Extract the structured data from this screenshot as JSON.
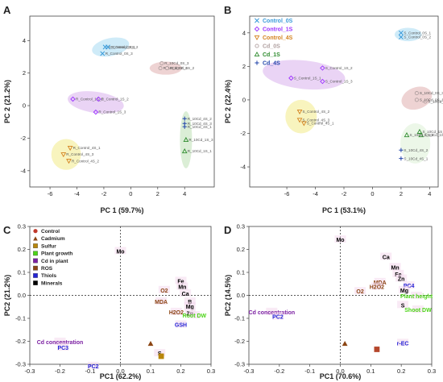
{
  "colors": {
    "control": "#c0392b",
    "cadmium": "#8b4513",
    "sulfur": "#b8860b",
    "plant_growth": "#4cd417",
    "cd_in_plant": "#7b1fa2",
    "ros": "#8b4513",
    "thiols": "#2424d6",
    "minerals": "#000000",
    "control_0s": "#3a9ad9",
    "control_1s": "#9b30ff",
    "control_4s": "#d4821e",
    "cd_0s": "#b0a0a0",
    "cd_1s": "#2e8b2e",
    "cd_4s": "#2244aa"
  },
  "chart_data": [
    {
      "panel": "A",
      "type": "scatter",
      "xlabel": "PC 1 (59.7%)",
      "ylabel": "PC 2 (21.2%)",
      "xlim": [
        -7.5,
        6.2
      ],
      "ylim": [
        -5.0,
        5.5
      ],
      "xticks": [
        "-6",
        "-4",
        "-2",
        "0",
        "2",
        "4"
      ],
      "xtick_values": [
        -6,
        -4,
        -2,
        0,
        2,
        4
      ],
      "yticks": [
        "4",
        "2",
        "0",
        "-2",
        "-4"
      ],
      "ytick_values": [
        4,
        2,
        0,
        -2,
        -4
      ],
      "ellipses": [
        {
          "cx": -1.5,
          "cy": 3.6,
          "rx": 1.4,
          "ry": 0.55,
          "angle": -12,
          "color": "#bfe4f6"
        },
        {
          "cx": -2.6,
          "cy": 0.2,
          "rx": 2.1,
          "ry": 0.65,
          "angle": 8,
          "color": "#e3c6f2"
        },
        {
          "cx": 2.6,
          "cy": 2.3,
          "rx": 1.2,
          "ry": 0.4,
          "angle": 0,
          "color": "#e8c4c4"
        },
        {
          "cx": -4.8,
          "cy": -3.0,
          "rx": 1.1,
          "ry": 0.95,
          "angle": 0,
          "color": "#f6f0a8"
        },
        {
          "cx": 4.1,
          "cy": -2.1,
          "rx": 0.45,
          "ry": 1.75,
          "angle": 0,
          "color": "#cfe8c8"
        }
      ],
      "points": [
        {
          "label": "R_Control_0S_1",
          "x": -1.9,
          "y": 3.6,
          "color": "#3a9ad9",
          "marker": "x"
        },
        {
          "label": "R_Control_0S_2",
          "x": -1.7,
          "y": 3.6,
          "color": "#3a9ad9",
          "marker": "x"
        },
        {
          "label": "R_Control_0S_3",
          "x": -2.1,
          "y": 3.2,
          "color": "#3a9ad9",
          "marker": "x"
        },
        {
          "label": "R_10Cd_0S_3",
          "x": 2.3,
          "y": 2.6,
          "color": "#b0a0a0",
          "marker": "o"
        },
        {
          "label": "R_10Cd_0S_1",
          "x": 2.2,
          "y": 2.3,
          "color": "#b0a0a0",
          "marker": "o"
        },
        {
          "label": "R_10Cd_0S_2",
          "x": 2.7,
          "y": 2.3,
          "color": "#b0a0a0",
          "marker": "o"
        },
        {
          "label": "R_Control_1S_1",
          "x": -4.3,
          "y": 0.4,
          "color": "#9b30ff",
          "marker": "d"
        },
        {
          "label": "R_Control_1S_2",
          "x": -2.4,
          "y": 0.4,
          "color": "#9b30ff",
          "marker": "d"
        },
        {
          "label": "R_Control_1S_3",
          "x": -2.6,
          "y": -0.4,
          "color": "#9b30ff",
          "marker": "d"
        },
        {
          "label": "R_10Cd_4S_2",
          "x": 4.0,
          "y": -0.8,
          "color": "#2244aa",
          "marker": "+"
        },
        {
          "label": "R_10Cd_4S_3",
          "x": 4.0,
          "y": -1.1,
          "color": "#2244aa",
          "marker": "+"
        },
        {
          "label": "R_10Cd_4S_1",
          "x": 4.0,
          "y": -1.3,
          "color": "#2244aa",
          "marker": "+"
        },
        {
          "label": "R_10Cd_1S_3",
          "x": 4.1,
          "y": -2.1,
          "color": "#2e8b2e",
          "marker": "t"
        },
        {
          "label": "R_10Cd_1S_1",
          "x": 4.0,
          "y": -2.8,
          "color": "#2e8b2e",
          "marker": "t"
        },
        {
          "label": "R_Control_4S_1",
          "x": -4.5,
          "y": -2.6,
          "color": "#d4821e",
          "marker": "v"
        },
        {
          "label": "R_Control_4S_3",
          "x": -5.0,
          "y": -3.0,
          "color": "#d4821e",
          "marker": "v"
        },
        {
          "label": "R_Control_4S_2",
          "x": -4.6,
          "y": -3.4,
          "color": "#d4821e",
          "marker": "v"
        }
      ]
    },
    {
      "panel": "B",
      "type": "scatter",
      "xlabel": "PC 1 (53.1%)",
      "ylabel": "PC 2 (22.4%)",
      "xlim": [
        -8.6,
        4.6
      ],
      "ylim": [
        -5.2,
        5.0
      ],
      "xticks": [
        "-6",
        "-4",
        "-2",
        "0",
        "2",
        "4"
      ],
      "xtick_values": [
        -6,
        -4,
        -2,
        0,
        2,
        4
      ],
      "yticks": [
        "4",
        "2",
        "0",
        "-2",
        "-4"
      ],
      "ytick_values": [
        4,
        2,
        0,
        -2,
        -4
      ],
      "legend": [
        "Control_0S",
        "Control_1S",
        "Control_4S",
        "Cd_0S",
        "Cd_1S",
        "Cd_4S"
      ],
      "ellipses": [
        {
          "cx": 2.5,
          "cy": 3.9,
          "rx": 0.95,
          "ry": 0.4,
          "angle": 0,
          "color": "#bfe4f6"
        },
        {
          "cx": -4.8,
          "cy": 1.5,
          "rx": 2.9,
          "ry": 0.85,
          "angle": 6,
          "color": "#e3c6f2"
        },
        {
          "cx": 3.1,
          "cy": 0.1,
          "rx": 1.1,
          "ry": 0.65,
          "angle": -20,
          "color": "#e8c4c4"
        },
        {
          "cx": -5.0,
          "cy": -1.0,
          "rx": 1.1,
          "ry": 1.0,
          "angle": 0,
          "color": "#f6f0a8"
        },
        {
          "cx": 3.0,
          "cy": -2.6,
          "rx": 1.05,
          "ry": 1.2,
          "angle": 0,
          "color": "#e6f4e0"
        }
      ],
      "points": [
        {
          "label": "S_Control_0S_1",
          "x": 2.0,
          "y": 4.0,
          "color": "#3a9ad9",
          "marker": "x"
        },
        {
          "label": "S_Control_0S_2",
          "x": 2.0,
          "y": 3.75,
          "color": "#3a9ad9",
          "marker": "x"
        },
        {
          "label": "S_Control_1S_2",
          "x": -3.5,
          "y": 1.9,
          "color": "#9b30ff",
          "marker": "d"
        },
        {
          "label": "S_Control_1S_1",
          "x": -5.7,
          "y": 1.3,
          "color": "#9b30ff",
          "marker": "d"
        },
        {
          "label": "S_Control_1S_3",
          "x": -3.5,
          "y": 1.1,
          "color": "#9b30ff",
          "marker": "d"
        },
        {
          "label": "S_10Cd_0S_3",
          "x": 3.1,
          "y": 0.4,
          "color": "#b0a0a0",
          "marker": "o"
        },
        {
          "label": "S_10Cd_0S_1",
          "x": 3.1,
          "y": 0.0,
          "color": "#b0a0a0",
          "marker": "o"
        },
        {
          "label": "S_10Cd_0S_2",
          "x": 3.7,
          "y": -0.1,
          "color": "#b0a0a0",
          "marker": "o"
        },
        {
          "label": "S_Control_4S_2",
          "x": -5.1,
          "y": -0.7,
          "color": "#d4821e",
          "marker": "v"
        },
        {
          "label": "S_Control_4S_3",
          "x": -5.1,
          "y": -1.2,
          "color": "#d4821e",
          "marker": "v"
        },
        {
          "label": "S_Control_4S_1",
          "x": -4.8,
          "y": -1.4,
          "color": "#d4821e",
          "marker": "v"
        },
        {
          "label": "S_10Cd_1S_3",
          "x": 3.3,
          "y": -1.9,
          "color": "#2e8b2e",
          "marker": "t"
        },
        {
          "label": "S_10Cd_1S_1",
          "x": 3.4,
          "y": -2.1,
          "color": "#2e8b2e",
          "marker": "t"
        },
        {
          "label": "S_10Cd_1S_2",
          "x": 2.4,
          "y": -2.1,
          "color": "#2e8b2e",
          "marker": "t"
        },
        {
          "label": "S_10Cd_4S_2",
          "x": 2.0,
          "y": -3.0,
          "color": "#2244aa",
          "marker": "+"
        },
        {
          "label": "S_10Cd_4S_1",
          "x": 2.0,
          "y": -3.5,
          "color": "#2244aa",
          "marker": "+"
        }
      ]
    },
    {
      "panel": "C",
      "type": "scatter",
      "xlabel": "PC1 (62.2%)",
      "ylabel": "PC2 (21.2%)",
      "xlim": [
        -0.3,
        0.3
      ],
      "ylim": [
        -0.3,
        0.3
      ],
      "xticks": [
        "-0.3",
        "-0.2",
        "-0.1",
        "0.0",
        "0.1",
        "0.2",
        "0.3"
      ],
      "xtick_values": [
        -0.3,
        -0.2,
        -0.1,
        0.0,
        0.1,
        0.2,
        0.3
      ],
      "yticks": [
        "0.3",
        "0.2",
        "0.1",
        "0.0",
        "-0.1",
        "-0.2",
        "-0.3"
      ],
      "ytick_values": [
        0.3,
        0.2,
        0.1,
        0.0,
        -0.1,
        -0.2,
        -0.3
      ],
      "legend": [
        "Control",
        "Cadmium",
        "Sulfur",
        "Plant growth",
        "Cd in plant",
        "ROS",
        "Thiols",
        "Minerals"
      ],
      "markers": [
        {
          "x": 0.1,
          "y": -0.21,
          "color": "#8b4513",
          "marker": "t"
        },
        {
          "x": 0.135,
          "y": -0.265,
          "color": "#b8860b",
          "marker": "s"
        }
      ],
      "labels": [
        {
          "text": "Mo",
          "x": 0.0,
          "y": 0.19,
          "color": "#000000"
        },
        {
          "text": "Fe",
          "x": 0.2,
          "y": 0.06,
          "color": "#000000"
        },
        {
          "text": "Mn",
          "x": 0.205,
          "y": 0.035,
          "color": "#000000"
        },
        {
          "text": "Ca",
          "x": 0.215,
          "y": 0.005,
          "color": "#000000"
        },
        {
          "text": "O2",
          "x": 0.145,
          "y": 0.02,
          "color": "#8b4513"
        },
        {
          "text": "MDA",
          "x": 0.135,
          "y": -0.03,
          "color": "#8b4513"
        },
        {
          "text": "B",
          "x": 0.23,
          "y": -0.03,
          "color": "#000000"
        },
        {
          "text": "Mg",
          "x": 0.23,
          "y": -0.05,
          "color": "#000000"
        },
        {
          "text": "H2O2",
          "x": 0.185,
          "y": -0.075,
          "color": "#8b4513"
        },
        {
          "text": "Zn",
          "x": 0.23,
          "y": -0.08,
          "color": "#000000"
        },
        {
          "text": "Root DW",
          "x": 0.245,
          "y": -0.09,
          "color": "#4cd417"
        },
        {
          "text": "GSH",
          "x": 0.2,
          "y": -0.13,
          "color": "#2424d6"
        },
        {
          "text": "S",
          "x": 0.13,
          "y": -0.255,
          "color": "#000000"
        },
        {
          "text": "Cd concentration",
          "x": -0.2,
          "y": -0.205,
          "color": "#7b1fa2"
        },
        {
          "text": "PC3",
          "x": -0.19,
          "y": -0.23,
          "color": "#2424d6"
        },
        {
          "text": "PC2",
          "x": -0.09,
          "y": -0.31,
          "color": "#2424d6"
        }
      ]
    },
    {
      "panel": "D",
      "type": "scatter",
      "xlabel": "PC1 (70.6%)",
      "ylabel": "PC2 (14.5%)",
      "xlim": [
        -0.3,
        0.3
      ],
      "ylim": [
        -0.3,
        0.3
      ],
      "xticks": [
        "-0.3",
        "-0.2",
        "-0.1",
        "0.0",
        "0.1",
        "0.2",
        "0.3"
      ],
      "xtick_values": [
        -0.3,
        -0.2,
        -0.1,
        0.0,
        0.1,
        0.2,
        0.3
      ],
      "yticks": [
        "0.3",
        "0.2",
        "0.1",
        "0.0",
        "-0.1",
        "-0.2",
        "-0.3"
      ],
      "ytick_values": [
        0.3,
        0.2,
        0.1,
        0.0,
        -0.1,
        -0.2,
        -0.3
      ],
      "markers": [
        {
          "x": 0.015,
          "y": -0.21,
          "color": "#8b4513",
          "marker": "t"
        },
        {
          "x": 0.12,
          "y": -0.235,
          "color": "#b5472c",
          "marker": "s"
        }
      ],
      "labels": [
        {
          "text": "Mo",
          "x": 0.0,
          "y": 0.24,
          "color": "#000000"
        },
        {
          "text": "Ca",
          "x": 0.15,
          "y": 0.165,
          "color": "#000000"
        },
        {
          "text": "Mn",
          "x": 0.18,
          "y": 0.12,
          "color": "#000000"
        },
        {
          "text": "Fe",
          "x": 0.19,
          "y": 0.09,
          "color": "#000000"
        },
        {
          "text": "Zn",
          "x": 0.2,
          "y": 0.07,
          "color": "#000000"
        },
        {
          "text": "MDA",
          "x": 0.13,
          "y": 0.055,
          "color": "#8b4513"
        },
        {
          "text": "H2O2",
          "x": 0.12,
          "y": 0.035,
          "color": "#8b4513"
        },
        {
          "text": "PC4",
          "x": 0.225,
          "y": 0.04,
          "color": "#2424d6"
        },
        {
          "text": "Mg",
          "x": 0.21,
          "y": 0.02,
          "color": "#000000"
        },
        {
          "text": "O2",
          "x": 0.065,
          "y": 0.015,
          "color": "#8b4513"
        },
        {
          "text": "Plant height",
          "x": 0.25,
          "y": -0.005,
          "color": "#4cd417"
        },
        {
          "text": "S",
          "x": 0.205,
          "y": -0.045,
          "color": "#000000"
        },
        {
          "text": "Shoot DW",
          "x": 0.255,
          "y": -0.065,
          "color": "#4cd417"
        },
        {
          "text": "r-EC",
          "x": 0.205,
          "y": -0.21,
          "color": "#2424d6"
        },
        {
          "text": "Cd concentration",
          "x": -0.225,
          "y": -0.075,
          "color": "#7b1fa2"
        },
        {
          "text": "PC2",
          "x": -0.205,
          "y": -0.095,
          "color": "#2424d6"
        }
      ]
    }
  ]
}
